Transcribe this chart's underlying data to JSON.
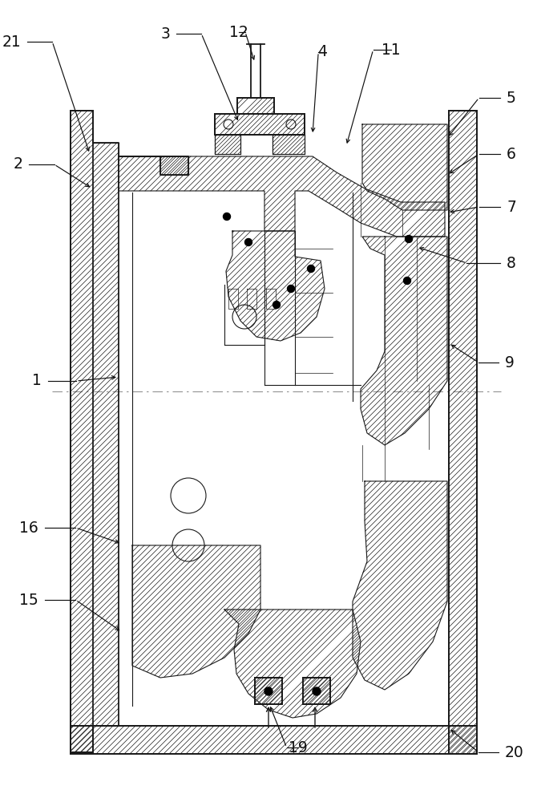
{
  "background_color": "#ffffff",
  "line_color": "#1a1a1a",
  "label_color": "#111111",
  "figsize": [
    6.7,
    10.0
  ],
  "dpi": 100,
  "labels": [
    [
      "1",
      52,
      475,
      148,
      470,
      "right"
    ],
    [
      "2",
      28,
      205,
      115,
      235,
      "right"
    ],
    [
      "3",
      212,
      42,
      298,
      153,
      "right"
    ],
    [
      "4",
      402,
      65,
      390,
      168,
      "center"
    ],
    [
      "5",
      632,
      122,
      558,
      172,
      "left"
    ],
    [
      "6",
      632,
      192,
      558,
      218,
      "left"
    ],
    [
      "7",
      632,
      258,
      558,
      265,
      "left"
    ],
    [
      "8",
      632,
      328,
      520,
      308,
      "left"
    ],
    [
      "9",
      630,
      452,
      560,
      428,
      "left"
    ],
    [
      "11",
      488,
      62,
      432,
      182,
      "center"
    ],
    [
      "12",
      298,
      40,
      318,
      78,
      "center"
    ],
    [
      "15",
      48,
      748,
      152,
      788,
      "right"
    ],
    [
      "16",
      48,
      658,
      152,
      678,
      "right"
    ],
    [
      "19",
      372,
      932,
      336,
      878,
      "center"
    ],
    [
      "20",
      630,
      938,
      560,
      908,
      "left"
    ],
    [
      "21",
      26,
      52,
      112,
      192,
      "right"
    ]
  ]
}
